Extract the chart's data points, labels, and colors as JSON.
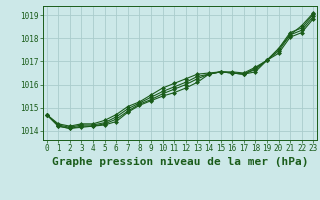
{
  "title": "Graphe pression niveau de la mer (hPa)",
  "xlabel_ticks": [
    "0",
    "1",
    "2",
    "3",
    "4",
    "5",
    "6",
    "7",
    "8",
    "9",
    "10",
    "11",
    "12",
    "13",
    "14",
    "15",
    "16",
    "17",
    "18",
    "19",
    "20",
    "21",
    "22",
    "23"
  ],
  "ylim": [
    1013.6,
    1019.4
  ],
  "xlim": [
    -0.3,
    23.3
  ],
  "yticks": [
    1014,
    1015,
    1016,
    1017,
    1018,
    1019
  ],
  "background_color": "#cce8e8",
  "grid_color": "#aacccc",
  "line_color": "#1a5c1a",
  "series": [
    [
      1014.7,
      1014.2,
      1014.1,
      1014.15,
      1014.2,
      1014.25,
      1014.4,
      1014.8,
      1015.1,
      1015.3,
      1015.5,
      1015.65,
      1015.85,
      1016.1,
      1016.45,
      1016.55,
      1016.5,
      1016.45,
      1016.55,
      1017.05,
      1017.55,
      1018.15,
      1018.55,
      1019.1
    ],
    [
      1014.7,
      1014.2,
      1014.1,
      1014.2,
      1014.2,
      1014.3,
      1014.5,
      1014.85,
      1015.15,
      1015.35,
      1015.6,
      1015.8,
      1016.0,
      1016.25,
      1016.45,
      1016.55,
      1016.5,
      1016.45,
      1016.65,
      1017.05,
      1017.45,
      1018.15,
      1018.35,
      1018.95
    ],
    [
      1014.7,
      1014.25,
      1014.15,
      1014.25,
      1014.25,
      1014.35,
      1014.6,
      1014.95,
      1015.2,
      1015.45,
      1015.7,
      1015.9,
      1016.1,
      1016.35,
      1016.45,
      1016.55,
      1016.5,
      1016.45,
      1016.7,
      1017.05,
      1017.35,
      1018.05,
      1018.25,
      1018.85
    ],
    [
      1014.7,
      1014.3,
      1014.2,
      1014.3,
      1014.3,
      1014.45,
      1014.7,
      1015.05,
      1015.25,
      1015.55,
      1015.85,
      1016.05,
      1016.25,
      1016.45,
      1016.5,
      1016.55,
      1016.55,
      1016.5,
      1016.75,
      1017.05,
      1017.55,
      1018.25,
      1018.45,
      1019.05
    ]
  ],
  "marker": "D",
  "markersize": 2.0,
  "linewidth": 0.8,
  "title_fontsize": 8,
  "tick_fontsize": 5.5,
  "title_color": "#1a5c1a",
  "tick_color": "#1a5c1a"
}
